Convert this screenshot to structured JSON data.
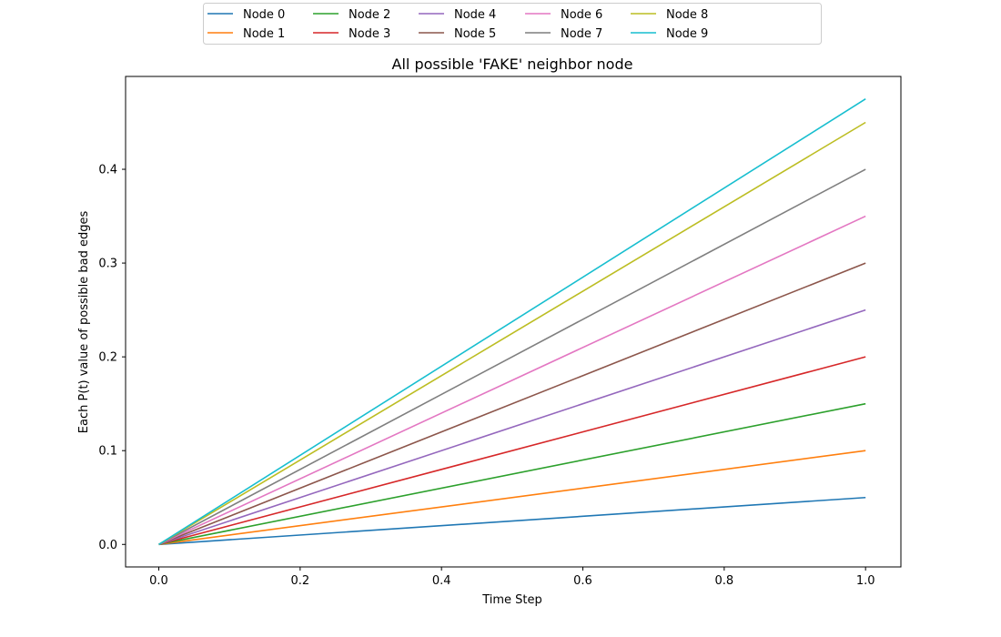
{
  "chart_data": {
    "type": "line",
    "title": "All possible 'FAKE' neighbor node",
    "xlabel": "Time Step",
    "ylabel": "Each P(t) value of possible bad edges",
    "xlim": [
      -0.047,
      1.05
    ],
    "ylim": [
      -0.024,
      0.499
    ],
    "xticks": [
      0.0,
      0.2,
      0.4,
      0.6,
      0.8,
      1.0
    ],
    "xtick_labels": [
      "0.0",
      "0.2",
      "0.4",
      "0.6",
      "0.8",
      "1.0"
    ],
    "yticks": [
      0.0,
      0.1,
      0.2,
      0.3,
      0.4
    ],
    "ytick_labels": [
      "0.0",
      "0.1",
      "0.2",
      "0.3",
      "0.4"
    ],
    "grid": false,
    "legend": "top-center",
    "x": [
      0.0,
      1.0
    ],
    "series": [
      {
        "name": "Node 0",
        "color": "#1f77b4",
        "values": [
          0.0,
          0.05
        ]
      },
      {
        "name": "Node 1",
        "color": "#ff7f0e",
        "values": [
          0.0,
          0.1
        ]
      },
      {
        "name": "Node 2",
        "color": "#2ca02c",
        "values": [
          0.0,
          0.15
        ]
      },
      {
        "name": "Node 3",
        "color": "#d62728",
        "values": [
          0.0,
          0.2
        ]
      },
      {
        "name": "Node 4",
        "color": "#9467bd",
        "values": [
          0.0,
          0.25
        ]
      },
      {
        "name": "Node 5",
        "color": "#8c564b",
        "values": [
          0.0,
          0.3
        ]
      },
      {
        "name": "Node 6",
        "color": "#e377c2",
        "values": [
          0.0,
          0.35
        ]
      },
      {
        "name": "Node 7",
        "color": "#7f7f7f",
        "values": [
          0.0,
          0.4
        ]
      },
      {
        "name": "Node 8",
        "color": "#bcbd22",
        "values": [
          0.0,
          0.45
        ]
      },
      {
        "name": "Node 9",
        "color": "#17becf",
        "values": [
          0.0,
          0.475
        ]
      }
    ]
  }
}
